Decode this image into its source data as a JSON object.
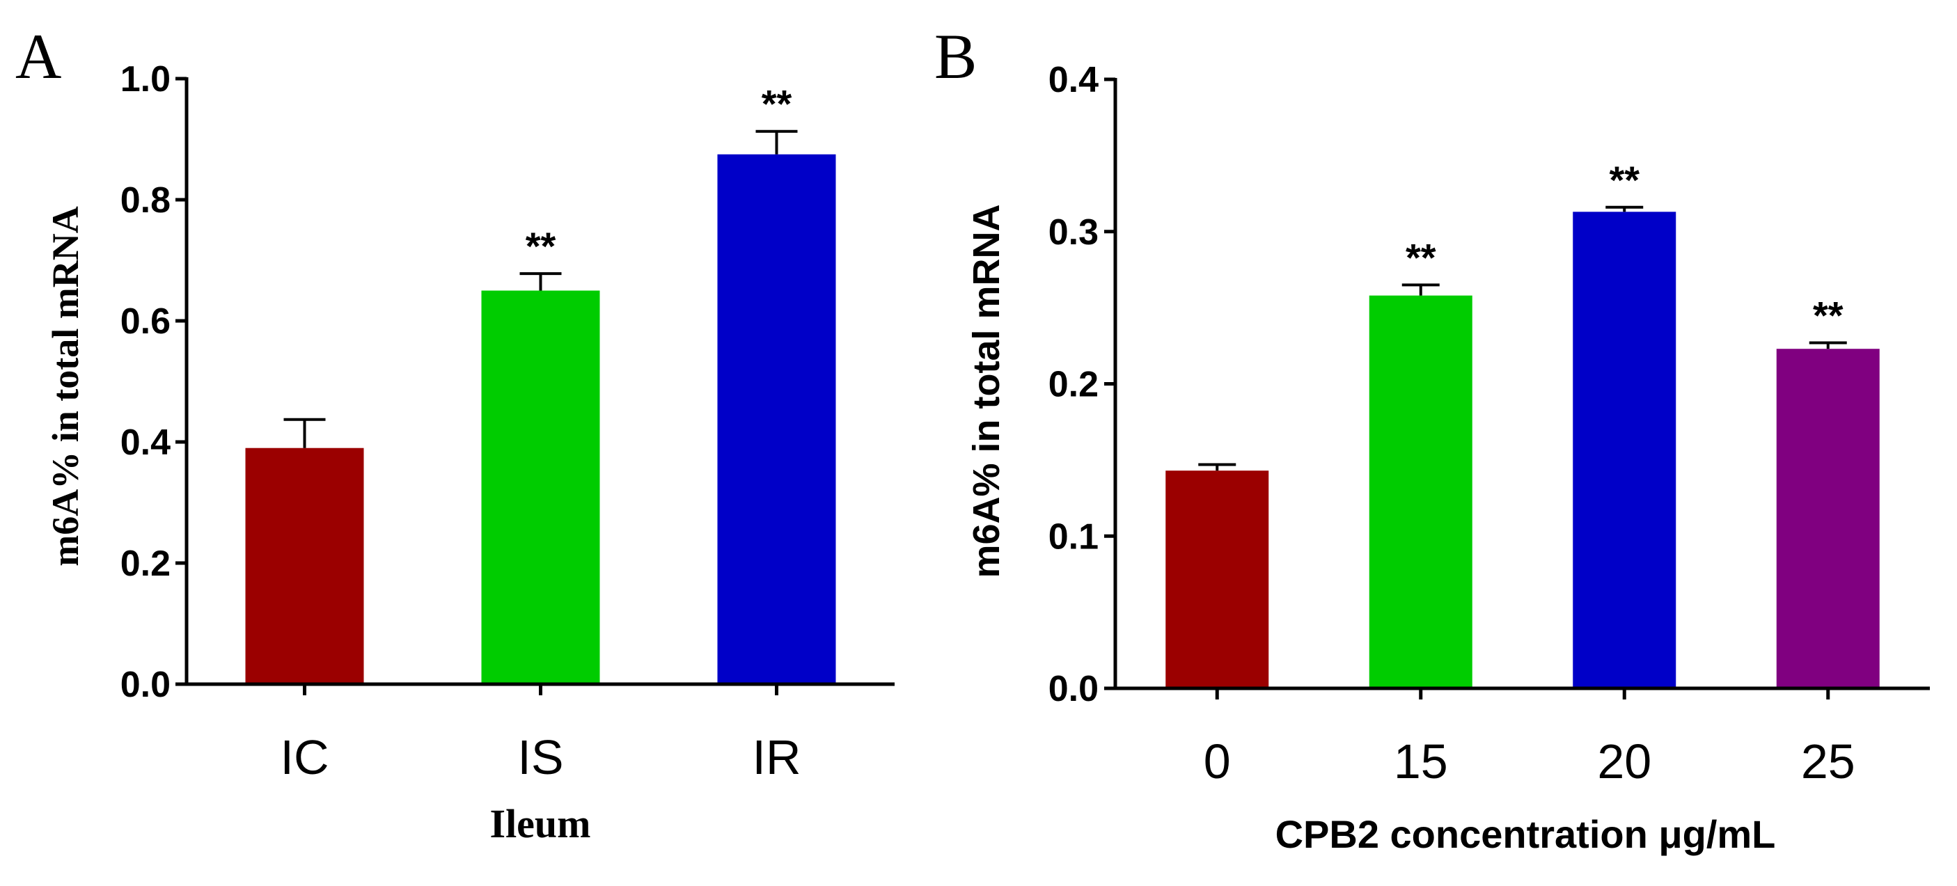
{
  "chart_data": [
    {
      "type": "bar",
      "panel_label": "A",
      "categories": [
        "IC",
        "IS",
        "IR"
      ],
      "values": [
        0.39,
        0.65,
        0.875
      ],
      "errors": [
        0.047,
        0.028,
        0.038
      ],
      "significance": [
        "",
        "**",
        "**"
      ],
      "colors": [
        "#9b0000",
        "#00cc00",
        "#0000c8"
      ],
      "xlabel": "Ileum",
      "ylabel": "m6A% in total mRNA",
      "ylim": [
        0,
        1.0
      ],
      "yticks": [
        0.0,
        0.2,
        0.4,
        0.6,
        0.8,
        1.0
      ],
      "ytick_labels": [
        "0.0",
        "0.2",
        "0.4",
        "0.6",
        "0.8",
        "1.0"
      ]
    },
    {
      "type": "bar",
      "panel_label": "B",
      "categories": [
        "0",
        "15",
        "20",
        "25"
      ],
      "values": [
        0.143,
        0.258,
        0.313,
        0.223
      ],
      "errors": [
        0.004,
        0.007,
        0.003,
        0.004
      ],
      "significance": [
        "",
        "**",
        "**",
        "**"
      ],
      "colors": [
        "#9b0000",
        "#00cc00",
        "#0000c8",
        "#800080"
      ],
      "xlabel": "CPB2 concentration μg/mL",
      "ylabel": "m6A% in total mRNA",
      "ylim": [
        0,
        0.4
      ],
      "yticks": [
        0.0,
        0.1,
        0.2,
        0.3,
        0.4
      ],
      "ytick_labels": [
        "0.0",
        "0.1",
        "0.2",
        "0.3",
        "0.4"
      ]
    }
  ]
}
